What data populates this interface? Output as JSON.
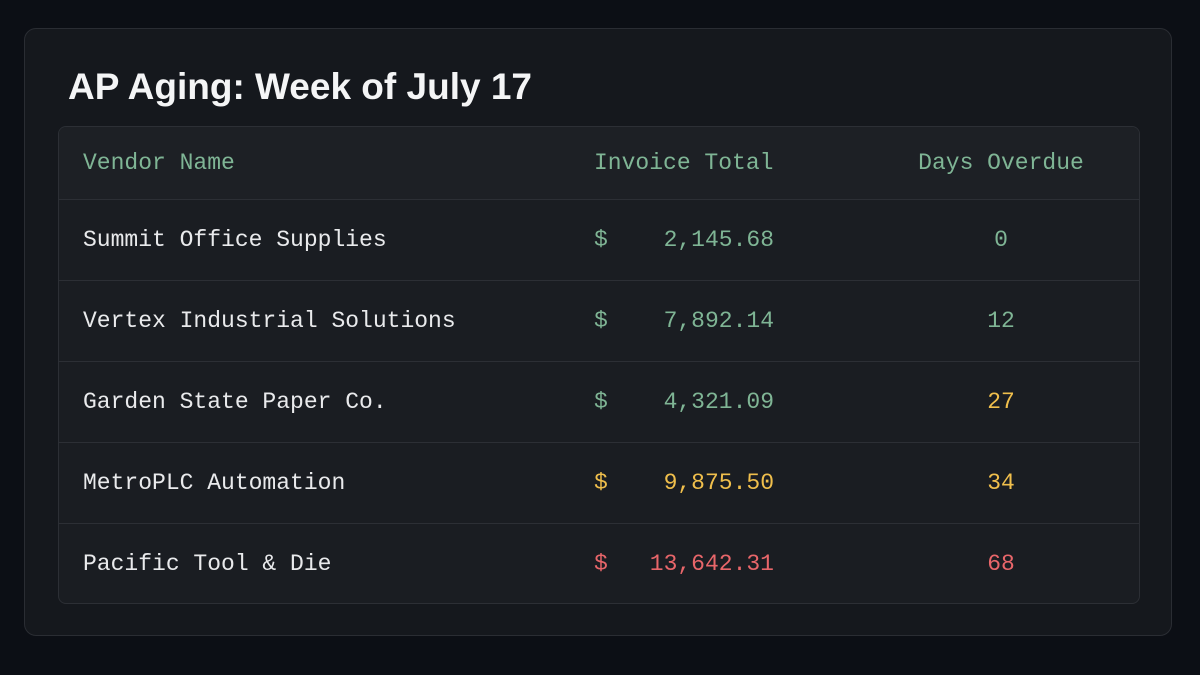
{
  "header": {
    "title": "AP Aging: Week of July 17"
  },
  "table": {
    "columns": [
      "Vendor Name",
      "Invoice Total",
      "Days Overdue"
    ],
    "header_color": "#7fb595",
    "rows": [
      {
        "vendor": "Summit Office Supplies",
        "currency": "$",
        "amount": "2,145.68",
        "days": "0",
        "amount_color": "#7fb595",
        "days_color": "#7fb595"
      },
      {
        "vendor": "Vertex Industrial Solutions",
        "currency": "$",
        "amount": "7,892.14",
        "days": "12",
        "amount_color": "#7fb595",
        "days_color": "#7fb595"
      },
      {
        "vendor": "Garden State Paper Co.",
        "currency": "$",
        "amount": "4,321.09",
        "days": "27",
        "amount_color": "#7fb595",
        "days_color": "#f0bf4c"
      },
      {
        "vendor": "MetroPLC Automation",
        "currency": "$",
        "amount": "9,875.50",
        "days": "34",
        "amount_color": "#f0bf4c",
        "days_color": "#f0bf4c"
      },
      {
        "vendor": "Pacific Tool & Die",
        "currency": "$",
        "amount": "13,642.31",
        "days": "68",
        "amount_color": "#e8666a",
        "days_color": "#e8666a"
      }
    ]
  }
}
